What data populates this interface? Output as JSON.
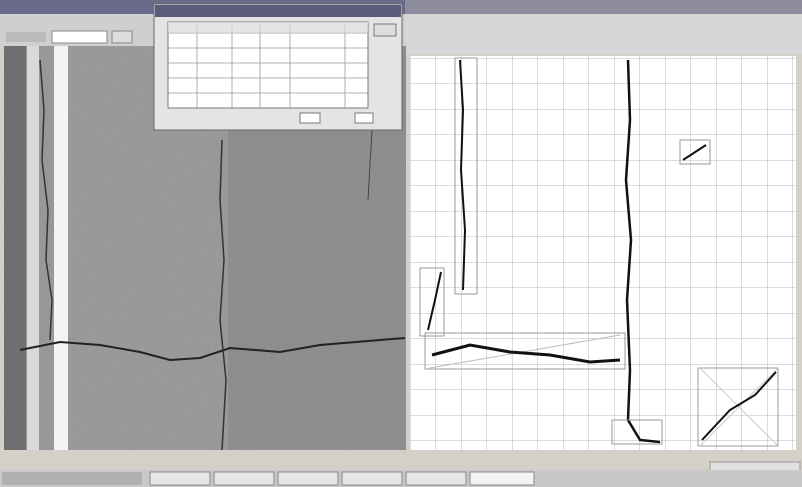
{
  "screenshot": {}
}
